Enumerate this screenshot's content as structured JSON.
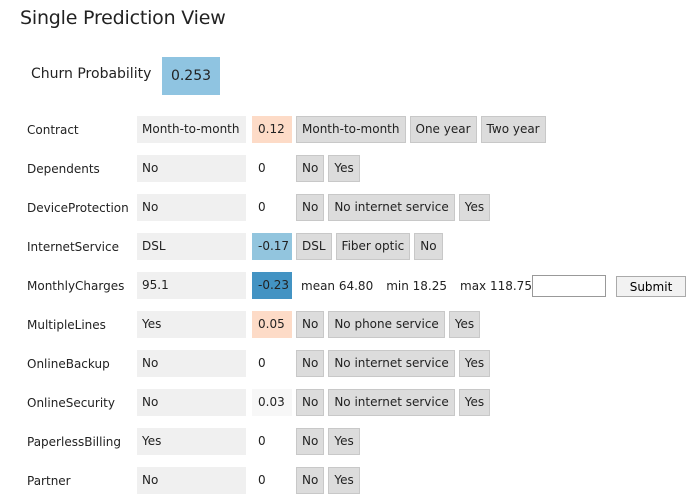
{
  "title": "Single Prediction View",
  "churn": {
    "label": "Churn Probability",
    "value": "0.253",
    "color": "#8fc4e1"
  },
  "rows": [
    {
      "feature": "Contract",
      "value": "Month-to-month",
      "contribution": "0.12",
      "contrib_color": "#fddbc7",
      "options": [
        "Month-to-month",
        "One year",
        "Two year"
      ]
    },
    {
      "feature": "Dependents",
      "value": "No",
      "contribution": "0",
      "contrib_color": "#ffffff",
      "options": [
        "No",
        "Yes"
      ]
    },
    {
      "feature": "DeviceProtection",
      "value": "No",
      "contribution": "0",
      "contrib_color": "#ffffff",
      "options": [
        "No",
        "No internet service",
        "Yes"
      ]
    },
    {
      "feature": "InternetService",
      "value": "DSL",
      "contribution": "-0.17",
      "contrib_color": "#92c5de",
      "options": [
        "DSL",
        "Fiber optic",
        "No"
      ]
    },
    {
      "feature": "MonthlyCharges",
      "value": "95.1",
      "contribution": "-0.23",
      "contrib_color": "#4393c3",
      "numeric": true,
      "stats": [
        "mean 64.80",
        "min 18.25",
        "max 118.75"
      ],
      "submit": "Submit",
      "input_value": ""
    },
    {
      "feature": "MultipleLines",
      "value": "Yes",
      "contribution": "0.05",
      "contrib_color": "#fddbc7",
      "options": [
        "No",
        "No phone service",
        "Yes"
      ]
    },
    {
      "feature": "OnlineBackup",
      "value": "No",
      "contribution": "0",
      "contrib_color": "#ffffff",
      "options": [
        "No",
        "No internet service",
        "Yes"
      ]
    },
    {
      "feature": "OnlineSecurity",
      "value": "No",
      "contribution": "0.03",
      "contrib_color": "#f7f7f7",
      "options": [
        "No",
        "No internet service",
        "Yes"
      ]
    },
    {
      "feature": "PaperlessBilling",
      "value": "Yes",
      "contribution": "0",
      "contrib_color": "#ffffff",
      "options": [
        "No",
        "Yes"
      ]
    },
    {
      "feature": "Partner",
      "value": "No",
      "contribution": "0",
      "contrib_color": "#ffffff",
      "options": [
        "No",
        "Yes"
      ]
    }
  ]
}
